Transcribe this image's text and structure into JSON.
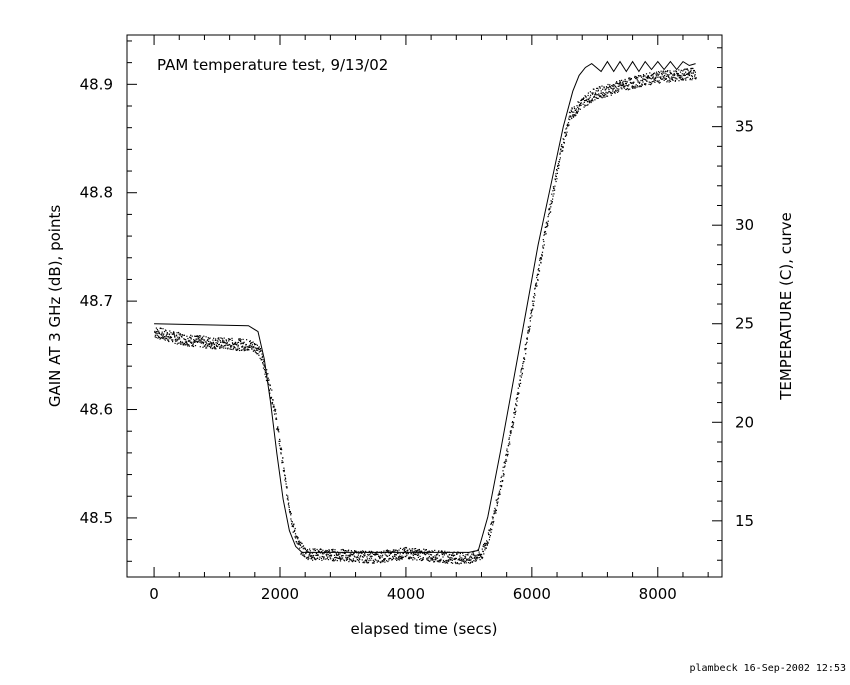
{
  "chart_data": {
    "type": "scatter",
    "title": "PAM temperature test, 9/13/02",
    "xlabel": "elapsed time (secs)",
    "ylabel": "GAIN AT 3 GHz (dB), points",
    "y2label": "TEMPERATURE (C), curve",
    "xlim": [
      -430,
      9020
    ],
    "ylim": [
      48.4455,
      48.9455
    ],
    "y2lim": [
      12.15,
      39.65
    ],
    "x_ticks": [
      "0",
      "2000",
      "4000",
      "6000",
      "8000"
    ],
    "y_ticks": [
      "48.5",
      "48.6",
      "48.7",
      "48.8",
      "48.9"
    ],
    "y2_ticks": [
      "15",
      "20",
      "25",
      "30",
      "35"
    ],
    "grid": false,
    "series": [
      {
        "name": "points",
        "axis": "left",
        "style": "dots",
        "color": "#000000",
        "x": [
          0,
          300,
          600,
          900,
          1200,
          1500,
          1650,
          1700,
          1800,
          1900,
          2000,
          2100,
          2200,
          2300,
          2400,
          2500,
          3000,
          3500,
          4000,
          4500,
          5000,
          5200,
          5300,
          5400,
          5500,
          5600,
          5700,
          5800,
          5900,
          6000,
          6100,
          6200,
          6300,
          6400,
          6500,
          6600,
          6700,
          6800,
          6900,
          7000,
          7200,
          7400,
          7600,
          7800,
          8000,
          8200,
          8400,
          8600
        ],
        "values": [
          48.672,
          48.667,
          48.664,
          48.662,
          48.661,
          48.66,
          48.657,
          48.648,
          48.628,
          48.603,
          48.565,
          48.525,
          48.492,
          48.474,
          48.468,
          48.467,
          48.466,
          48.464,
          48.468,
          48.465,
          48.463,
          48.467,
          48.482,
          48.505,
          48.532,
          48.56,
          48.592,
          48.625,
          48.66,
          48.695,
          48.728,
          48.762,
          48.792,
          48.822,
          48.85,
          48.872,
          48.878,
          48.884,
          48.888,
          48.892,
          48.895,
          48.899,
          48.902,
          48.905,
          48.907,
          48.908,
          48.909,
          48.911
        ]
      },
      {
        "name": "curve",
        "axis": "right",
        "style": "line",
        "color": "#000000",
        "x": [
          0,
          1500,
          1650,
          1750,
          1850,
          1950,
          2050,
          2150,
          2250,
          2350,
          2450,
          3000,
          4000,
          5000,
          5150,
          5300,
          5500,
          5700,
          5900,
          6100,
          6300,
          6500,
          6650,
          6750,
          6850,
          6950,
          7100,
          7200,
          7300,
          7400,
          7500,
          7600,
          7700,
          7800,
          7900,
          8000,
          8100,
          8200,
          8300,
          8400,
          8500,
          8600
        ],
        "values": [
          25.0,
          24.9,
          24.6,
          23.2,
          21.0,
          18.4,
          16.1,
          14.5,
          13.7,
          13.4,
          13.4,
          13.4,
          13.4,
          13.4,
          13.5,
          15.2,
          18.5,
          22.0,
          25.5,
          29.0,
          32.0,
          35.0,
          36.8,
          37.6,
          38.0,
          38.2,
          37.8,
          38.3,
          37.8,
          38.3,
          37.8,
          38.3,
          37.8,
          38.3,
          37.9,
          38.3,
          37.9,
          38.3,
          37.9,
          38.3,
          38.1,
          38.2
        ]
      }
    ]
  },
  "footer": "plambeck 16-Sep-2002 12:53"
}
